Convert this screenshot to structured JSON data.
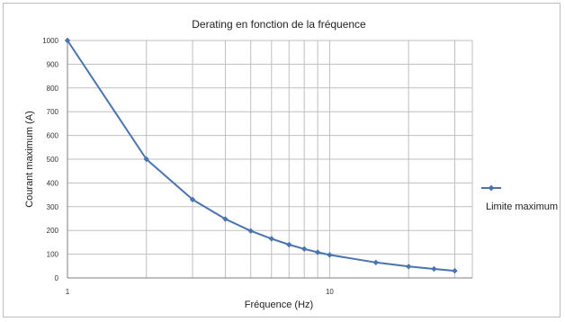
{
  "chart_data": {
    "type": "line",
    "title": "Derating en fonction de la fréquence",
    "xlabel": "Fréquence (Hz)",
    "ylabel": "Courant maximum (A)",
    "x_scale": "log",
    "xlim": [
      1,
      35
    ],
    "ylim": [
      0,
      1000
    ],
    "x_tick_labels": [
      "1",
      "10"
    ],
    "y_ticks": [
      "0",
      "100",
      "200",
      "300",
      "400",
      "500",
      "600",
      "700",
      "800",
      "900",
      "1000"
    ],
    "grid": true,
    "legend": "right",
    "colors": {
      "series": "#4a74b0",
      "grid": "#bfbfbf",
      "axis": "#7f7f7f"
    },
    "series": [
      {
        "name": "Limite maximum",
        "x": [
          1,
          2,
          3,
          4,
          5,
          6,
          7,
          8,
          9,
          10,
          15,
          20,
          25,
          30
        ],
        "y": [
          1000,
          500,
          330,
          248,
          198,
          165,
          140,
          122,
          108,
          97,
          65,
          48,
          38,
          30
        ]
      }
    ]
  }
}
